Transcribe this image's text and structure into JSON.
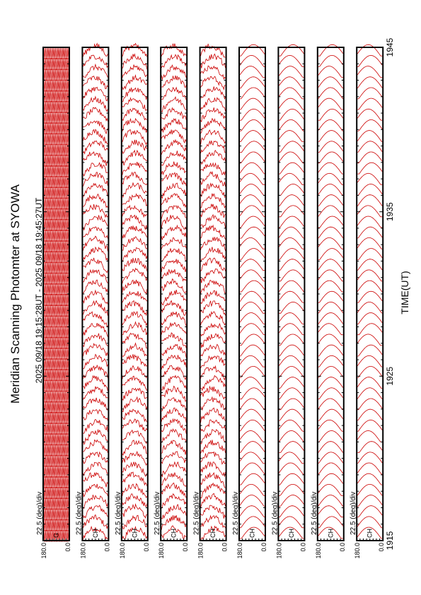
{
  "chart_data": {
    "type": "line",
    "title": "Meridian Scanning Photomter at SYOWA",
    "subtitle": "2025 09/18 19:15:28UT - 2025 09/18 19:45:27UT",
    "xlabel": "TIME(UT)",
    "x_ticks": [
      "1915",
      "1925",
      "1935",
      "1945"
    ],
    "xlim_hhmm": [
      "1915",
      "1945"
    ],
    "panel_scale": "22.5 (deg)/div",
    "y_tick_top": "180.0",
    "y_tick_bottom": "0.0",
    "ylim_deg": [
      0,
      180
    ],
    "orientation": "rotated 90 degrees (time runs bottom to top)",
    "line_color": "#cc0000",
    "panels": [
      {
        "channel": "G",
        "pattern": "reference sweep"
      },
      {
        "channel": "CH",
        "pattern": "noisy scan"
      },
      {
        "channel": "CH",
        "pattern": "noisy scan"
      },
      {
        "channel": "CH",
        "pattern": "noisy scan"
      },
      {
        "channel": "CH",
        "pattern": "noisy scan"
      },
      {
        "channel": "CH",
        "pattern": "smooth scan"
      },
      {
        "channel": "CH",
        "pattern": "smooth scan"
      },
      {
        "channel": "CH",
        "pattern": "smooth scan"
      },
      {
        "channel": "CH",
        "pattern": "smooth scan"
      }
    ]
  }
}
